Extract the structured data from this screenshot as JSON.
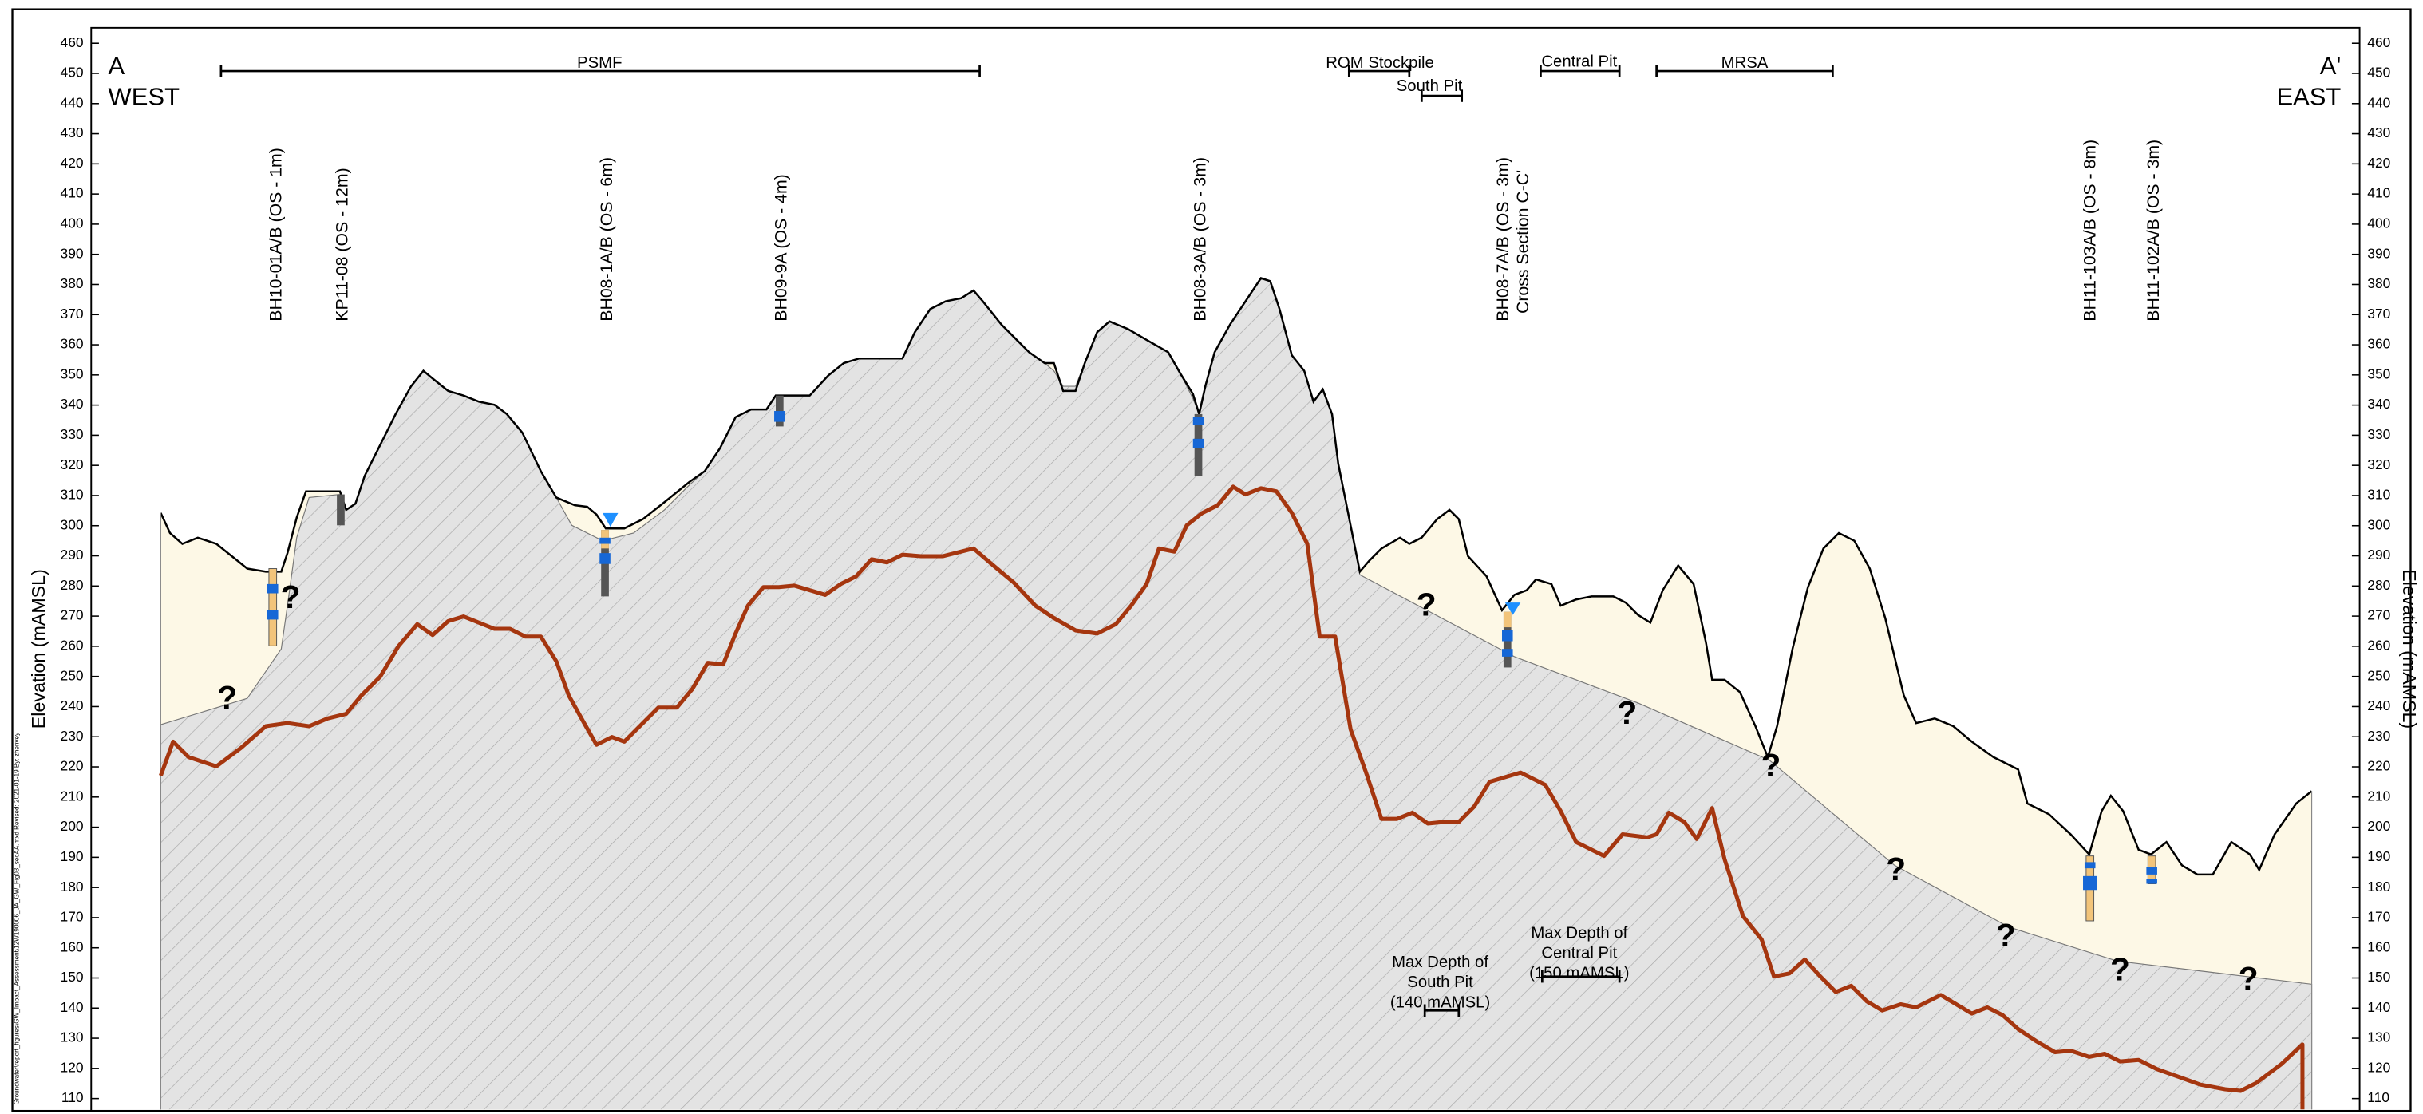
{
  "axis": {
    "label_left": "Elevation (mAMSL)",
    "label_right": "Elevation (mAMSL)",
    "ticks": [
      110,
      120,
      130,
      140,
      150,
      160,
      170,
      180,
      190,
      200,
      210,
      220,
      230,
      240,
      250,
      260,
      270,
      280,
      290,
      300,
      310,
      320,
      330,
      340,
      350,
      360,
      370,
      380,
      390,
      400,
      410,
      420,
      430,
      440,
      450,
      460
    ]
  },
  "section": {
    "start": "A",
    "start_direction": "WEST",
    "end": "A'",
    "end_direction": "EAST"
  },
  "facilities": [
    "PSMF",
    "ROM Stockpile",
    "South Pit",
    "Central Pit",
    "MRSA"
  ],
  "boreholes": [
    "BH10-01A/B (OS - 1m)",
    "KP11-08 (OS - 12m)",
    "BH08-1A/B (OS - 6m)",
    "BH09-9A (OS - 4m)",
    "BH08-3A/B (OS - 3m)",
    "BH08-7A/B (OS - 3m)",
    "BH11-103A/B (OS - 8m)",
    "BH11-102A/B (OS - 3m)"
  ],
  "cross_section": "Cross Section C-C'",
  "notes": [
    [
      "Max Depth of",
      "South Pit",
      "(140 mAMSL)"
    ],
    [
      "Max Depth of",
      "Central Pit",
      "(150 mAMSL)"
    ]
  ],
  "unknowns": [
    "?",
    "?",
    "?",
    "?",
    "?",
    "?",
    "?",
    "?",
    "?"
  ],
  "side_note": "Groundwater\\report_figures\\GW_Impact_Assessment\\12W190006_JA_GW_Fig03_secAA.mxd   Revised: 2021-01-19 By: zhenvey"
}
